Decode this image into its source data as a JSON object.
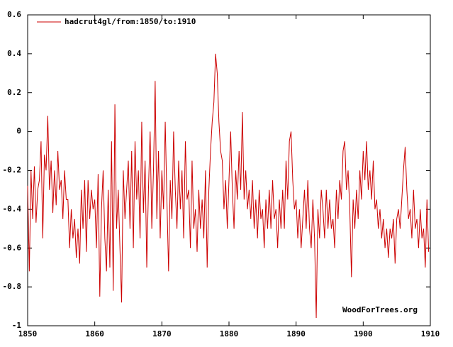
{
  "chart_data": {
    "type": "line",
    "annotation": "WoodForTrees.org",
    "x": [
      1850,
      1850.25,
      1850.5,
      1850.75,
      1851,
      1851.25,
      1851.5,
      1851.75,
      1852,
      1852.25,
      1852.5,
      1852.75,
      1853,
      1853.25,
      1853.5,
      1853.75,
      1854,
      1854.25,
      1854.5,
      1854.75,
      1855,
      1855.25,
      1855.5,
      1855.75,
      1856,
      1856.25,
      1856.5,
      1856.75,
      1857,
      1857.25,
      1857.5,
      1857.75,
      1858,
      1858.25,
      1858.5,
      1858.75,
      1859,
      1859.25,
      1859.5,
      1859.75,
      1860,
      1860.25,
      1860.5,
      1860.75,
      1861,
      1861.25,
      1861.5,
      1861.75,
      1862,
      1862.25,
      1862.5,
      1862.75,
      1863,
      1863.25,
      1863.5,
      1863.75,
      1864,
      1864.25,
      1864.5,
      1864.75,
      1865,
      1865.25,
      1865.5,
      1865.75,
      1866,
      1866.25,
      1866.5,
      1866.75,
      1867,
      1867.25,
      1867.5,
      1867.75,
      1868,
      1868.25,
      1868.5,
      1868.75,
      1869,
      1869.25,
      1869.5,
      1869.75,
      1870,
      1870.25,
      1870.5,
      1870.75,
      1871,
      1871.25,
      1871.5,
      1871.75,
      1872,
      1872.25,
      1872.5,
      1872.75,
      1873,
      1873.25,
      1873.5,
      1873.75,
      1874,
      1874.25,
      1874.5,
      1874.75,
      1875,
      1875.25,
      1875.5,
      1875.75,
      1876,
      1876.25,
      1876.5,
      1876.75,
      1877,
      1877.25,
      1877.5,
      1877.75,
      1878,
      1878.25,
      1878.5,
      1878.75,
      1879,
      1879.25,
      1879.5,
      1879.75,
      1880,
      1880.25,
      1880.5,
      1880.75,
      1881,
      1881.25,
      1881.5,
      1881.75,
      1882,
      1882.25,
      1882.5,
      1882.75,
      1883,
      1883.25,
      1883.5,
      1883.75,
      1884,
      1884.25,
      1884.5,
      1884.75,
      1885,
      1885.25,
      1885.5,
      1885.75,
      1886,
      1886.25,
      1886.5,
      1886.75,
      1887,
      1887.25,
      1887.5,
      1887.75,
      1888,
      1888.25,
      1888.5,
      1888.75,
      1889,
      1889.25,
      1889.5,
      1889.75,
      1890,
      1890.25,
      1890.5,
      1890.75,
      1891,
      1891.25,
      1891.5,
      1891.75,
      1892,
      1892.25,
      1892.5,
      1892.75,
      1893,
      1893.25,
      1893.5,
      1893.75,
      1894,
      1894.25,
      1894.5,
      1894.75,
      1895,
      1895.25,
      1895.5,
      1895.75,
      1896,
      1896.25,
      1896.5,
      1896.75,
      1897,
      1897.25,
      1897.5,
      1897.75,
      1898,
      1898.25,
      1898.5,
      1898.75,
      1899,
      1899.25,
      1899.5,
      1899.75,
      1900,
      1900.25,
      1900.5,
      1900.75,
      1901,
      1901.25,
      1901.5,
      1901.75,
      1902,
      1902.25,
      1902.5,
      1902.75,
      1903,
      1903.25,
      1903.5,
      1903.75,
      1904,
      1904.25,
      1904.5,
      1904.75,
      1905,
      1905.25,
      1905.5,
      1905.75,
      1906,
      1906.25,
      1906.5,
      1906.75,
      1907,
      1907.25,
      1907.5,
      1907.75,
      1908,
      1908.25,
      1908.5,
      1908.75,
      1909,
      1909.25,
      1909.5,
      1909.75
    ],
    "series": [
      {
        "name": "hadcrut4gl/from:1850/to:1910",
        "color": "#cc0000",
        "values": [
          -0.28,
          -0.72,
          -0.2,
          -0.45,
          -0.18,
          -0.47,
          -0.3,
          -0.25,
          -0.05,
          -0.55,
          -0.12,
          -0.2,
          0.08,
          -0.3,
          -0.15,
          -0.42,
          -0.2,
          -0.38,
          -0.1,
          -0.3,
          -0.25,
          -0.45,
          -0.2,
          -0.35,
          -0.35,
          -0.6,
          -0.4,
          -0.55,
          -0.45,
          -0.65,
          -0.5,
          -0.68,
          -0.3,
          -0.5,
          -0.25,
          -0.62,
          -0.25,
          -0.45,
          -0.3,
          -0.4,
          -0.35,
          -0.6,
          -0.22,
          -0.85,
          -0.4,
          -0.2,
          -0.55,
          -0.72,
          -0.3,
          -0.7,
          -0.05,
          -0.82,
          0.14,
          -0.5,
          -0.3,
          -0.6,
          -0.88,
          -0.2,
          -0.45,
          -0.3,
          -0.15,
          -0.5,
          -0.1,
          -0.6,
          -0.05,
          -0.35,
          -0.2,
          -0.55,
          0.05,
          -0.42,
          -0.15,
          -0.7,
          -0.3,
          0.0,
          -0.5,
          -0.2,
          0.26,
          -0.45,
          -0.1,
          -0.55,
          -0.2,
          -0.4,
          0.05,
          -0.35,
          -0.72,
          -0.25,
          -0.45,
          0.0,
          -0.3,
          -0.5,
          -0.15,
          -0.4,
          -0.2,
          -0.55,
          -0.05,
          -0.35,
          -0.3,
          -0.6,
          -0.15,
          -0.5,
          -0.4,
          -0.62,
          -0.3,
          -0.5,
          -0.35,
          -0.55,
          -0.2,
          -0.7,
          -0.3,
          -0.1,
          0.05,
          0.15,
          0.4,
          0.3,
          0.05,
          -0.1,
          -0.15,
          -0.4,
          -0.25,
          -0.5,
          -0.25,
          0.0,
          -0.3,
          -0.5,
          -0.2,
          -0.35,
          -0.1,
          -0.3,
          0.1,
          -0.35,
          -0.2,
          -0.4,
          -0.3,
          -0.45,
          -0.25,
          -0.5,
          -0.35,
          -0.55,
          -0.3,
          -0.45,
          -0.4,
          -0.6,
          -0.35,
          -0.5,
          -0.3,
          -0.5,
          -0.25,
          -0.45,
          -0.4,
          -0.6,
          -0.35,
          -0.5,
          -0.3,
          -0.5,
          -0.15,
          -0.35,
          -0.05,
          0.0,
          -0.25,
          -0.4,
          -0.35,
          -0.55,
          -0.4,
          -0.6,
          -0.45,
          -0.3,
          -0.5,
          -0.25,
          -0.5,
          -0.6,
          -0.35,
          -0.55,
          -0.96,
          -0.4,
          -0.55,
          -0.3,
          -0.4,
          -0.55,
          -0.3,
          -0.5,
          -0.35,
          -0.5,
          -0.45,
          -0.6,
          -0.3,
          -0.45,
          -0.25,
          -0.35,
          -0.1,
          -0.05,
          -0.3,
          -0.2,
          -0.4,
          -0.75,
          -0.35,
          -0.5,
          -0.3,
          -0.45,
          -0.2,
          -0.35,
          -0.1,
          -0.25,
          -0.05,
          -0.3,
          -0.2,
          -0.35,
          -0.15,
          -0.4,
          -0.35,
          -0.5,
          -0.4,
          -0.55,
          -0.45,
          -0.6,
          -0.5,
          -0.65,
          -0.5,
          -0.55,
          -0.45,
          -0.68,
          -0.45,
          -0.4,
          -0.5,
          -0.35,
          -0.2,
          -0.08,
          -0.3,
          -0.45,
          -0.4,
          -0.55,
          -0.3,
          -0.5,
          -0.45,
          -0.6,
          -0.4,
          -0.55,
          -0.5,
          -0.7,
          -0.35,
          -0.62
        ]
      }
    ],
    "xlim": [
      1850,
      1910
    ],
    "xticks": [
      1850,
      1860,
      1870,
      1880,
      1890,
      1900,
      1910
    ],
    "ylim": [
      -1,
      0.6
    ],
    "yticks": [
      -1,
      -0.8,
      -0.6,
      -0.4,
      -0.2,
      0,
      0.2,
      0.4,
      0.6
    ],
    "grid": false,
    "legend": "top-left"
  }
}
